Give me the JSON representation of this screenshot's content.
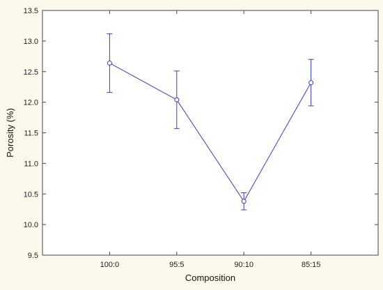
{
  "chart_data": {
    "type": "line",
    "title": "",
    "xlabel": "Composition",
    "ylabel": "Porosity (%)",
    "categories": [
      "100:0",
      "95:5",
      "90:10",
      "85:15"
    ],
    "series": [
      {
        "values": [
          12.64,
          12.04,
          10.38,
          12.32
        ],
        "error_upper": [
          13.12,
          12.51,
          10.52,
          12.7
        ],
        "error_lower": [
          12.16,
          11.57,
          10.24,
          11.94
        ],
        "color": "#3a3ad0",
        "marker": "circle"
      }
    ],
    "ylim": [
      9.5,
      13.5
    ],
    "yticks": [
      "9.5",
      "10.0",
      "10.5",
      "11.0",
      "11.5",
      "12.0",
      "12.5",
      "13.0",
      "13.5"
    ],
    "grid": false,
    "background": "#fdf8ec",
    "plot_background": "#ffffff"
  }
}
